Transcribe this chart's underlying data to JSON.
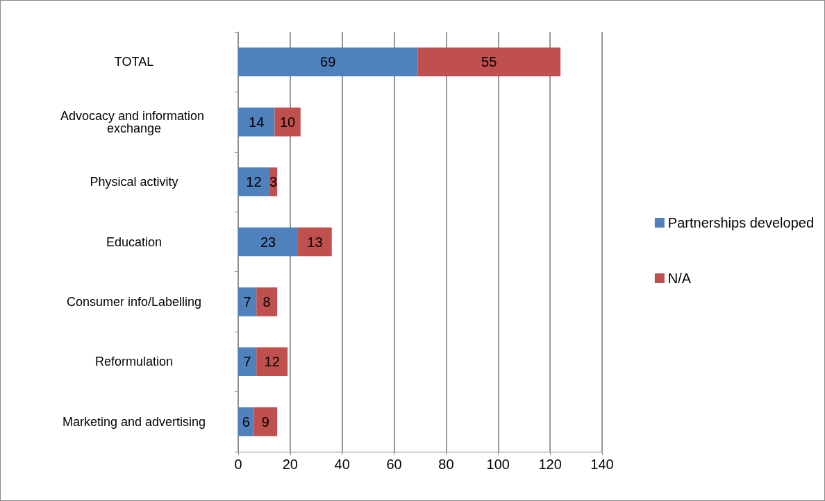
{
  "chart_data": {
    "type": "bar",
    "orientation": "horizontal",
    "stacked": true,
    "data_labels": true,
    "grid": "x",
    "legend": "right",
    "categories": [
      "TOTAL",
      "Advocacy and information exchange",
      "Physical activity",
      "Education",
      "Consumer info/Labelling",
      "Reformulation",
      "Marketing and advertising"
    ],
    "series": [
      {
        "name": "Partnerships developed",
        "color": "#4f81bd",
        "values": [
          69,
          14,
          12,
          23,
          7,
          7,
          6
        ]
      },
      {
        "name": "N/A",
        "color": "#c0504d",
        "values": [
          55,
          10,
          3,
          13,
          8,
          12,
          9
        ]
      }
    ],
    "xlim": [
      0,
      140
    ],
    "xticks": [
      0,
      20,
      40,
      60,
      80,
      100,
      120,
      140
    ]
  }
}
